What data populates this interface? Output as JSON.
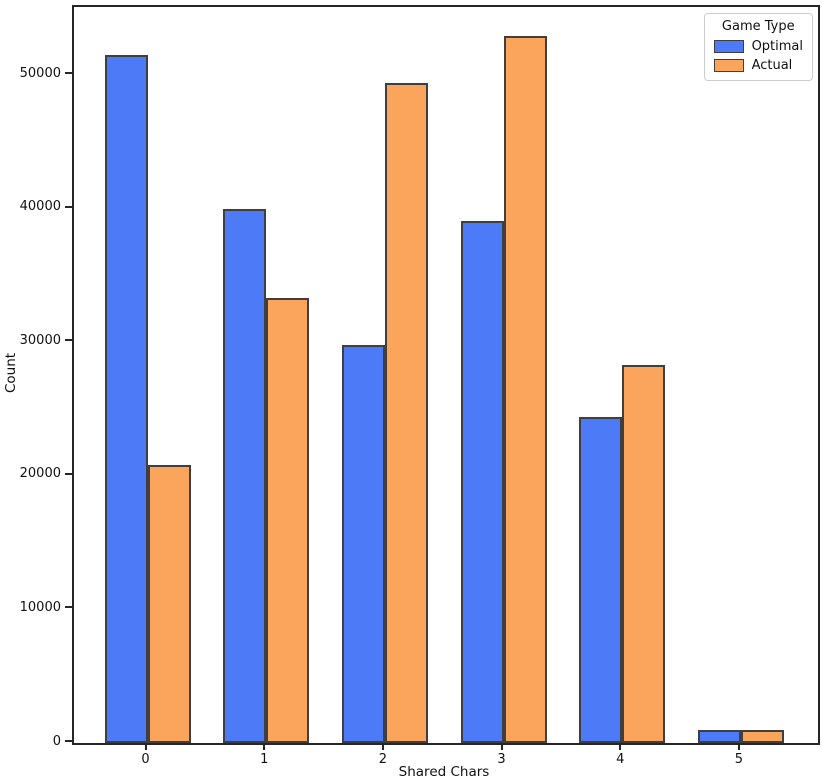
{
  "chart_data": {
    "type": "bar",
    "title": "",
    "xlabel": "Shared Chars",
    "ylabel": "Count",
    "categories": [
      "0",
      "1",
      "2",
      "3",
      "4",
      "5"
    ],
    "series": [
      {
        "name": "Optimal",
        "color": "#4d7af7",
        "values": [
          51500,
          40000,
          29800,
          39100,
          24400,
          1000
        ]
      },
      {
        "name": "Actual",
        "color": "#fba45c",
        "values": [
          20800,
          33300,
          49400,
          52900,
          28300,
          1000
        ]
      }
    ],
    "yticks": [
      0,
      10000,
      20000,
      30000,
      40000,
      50000
    ],
    "ylim": [
      0,
      55100
    ],
    "xlim": [
      -0.62,
      5.65
    ],
    "bar_unit_width": 0.3625,
    "bar_edge_color": "#3f3f3f",
    "axis_color": "#262626",
    "legend": {
      "title": "Game Type",
      "position": "upper right"
    },
    "grid": false
  }
}
